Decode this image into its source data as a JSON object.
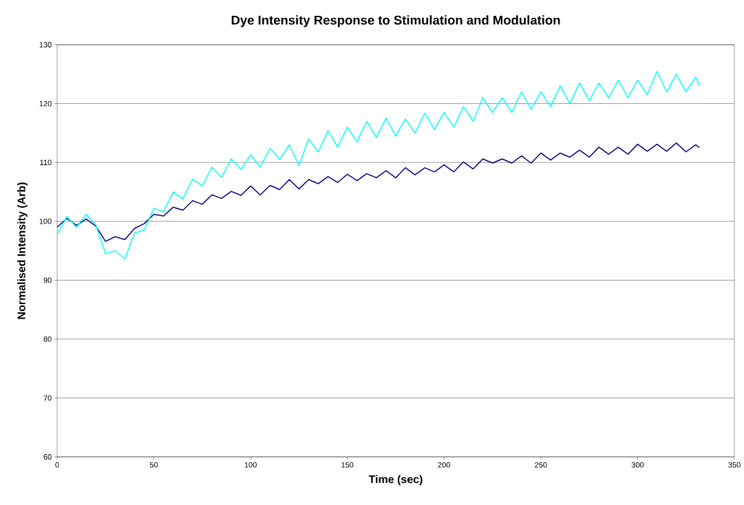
{
  "chart_data": {
    "type": "line",
    "title": "Dye Intensity Response to Stimulation and Modulation",
    "xlabel": "Time (sec)",
    "ylabel": "Normalised Intensity (Arb)",
    "x": [
      0,
      5,
      10,
      15,
      20,
      25,
      30,
      35,
      40,
      45,
      50,
      55,
      60,
      65,
      70,
      75,
      80,
      85,
      90,
      95,
      100,
      105,
      110,
      115,
      120,
      125,
      130,
      135,
      140,
      145,
      150,
      155,
      160,
      165,
      170,
      175,
      180,
      185,
      190,
      195,
      200,
      205,
      210,
      215,
      220,
      225,
      230,
      235,
      240,
      245,
      250,
      255,
      260,
      265,
      270,
      275,
      280,
      285,
      290,
      295,
      300,
      305,
      310,
      315,
      320,
      325,
      330,
      332
    ],
    "series": [
      {
        "color": "#000080",
        "values": [
          99.0,
          100.5,
          99.3,
          100.4,
          99.2,
          96.6,
          97.4,
          96.9,
          98.8,
          99.6,
          101.2,
          100.9,
          102.4,
          101.9,
          103.5,
          102.9,
          104.5,
          103.9,
          105.1,
          104.4,
          106.0,
          104.5,
          106.1,
          105.4,
          107.1,
          105.5,
          107.1,
          106.4,
          107.6,
          106.6,
          108.0,
          106.9,
          108.1,
          107.4,
          108.6,
          107.4,
          109.1,
          107.9,
          109.1,
          108.4,
          109.6,
          108.4,
          110.1,
          108.9,
          110.6,
          109.9,
          110.6,
          109.9,
          111.1,
          109.9,
          111.6,
          110.4,
          111.6,
          110.9,
          112.1,
          110.9,
          112.6,
          111.4,
          112.6,
          111.4,
          113.1,
          111.9,
          113.1,
          111.9,
          113.3,
          111.8,
          113.0,
          112.5
        ]
      },
      {
        "color": "#00ffff",
        "values": [
          97.8,
          100.8,
          99.0,
          101.2,
          99.4,
          94.5,
          95.0,
          93.6,
          98.0,
          98.5,
          102.2,
          101.6,
          105.0,
          103.8,
          107.2,
          106.0,
          109.2,
          107.5,
          110.6,
          108.8,
          111.3,
          109.2,
          112.4,
          110.5,
          113.0,
          109.5,
          114.0,
          111.8,
          115.4,
          112.6,
          116.0,
          113.5,
          117.0,
          114.2,
          117.5,
          114.5,
          117.4,
          115.0,
          118.4,
          115.6,
          118.5,
          116.0,
          119.5,
          117.0,
          121.0,
          118.5,
          121.0,
          118.5,
          122.0,
          119.0,
          122.0,
          119.5,
          123.0,
          120.0,
          123.5,
          120.5,
          123.5,
          121.0,
          124.0,
          121.0,
          124.0,
          121.5,
          125.5,
          122.0,
          125.0,
          122.0,
          124.5,
          123.0
        ]
      }
    ],
    "xlim": [
      0,
      350
    ],
    "ylim": [
      60,
      130
    ],
    "xticks": [
      0,
      50,
      100,
      150,
      200,
      250,
      300,
      350
    ],
    "yticks": [
      60,
      70,
      80,
      90,
      100,
      110,
      120,
      130
    ],
    "grid": "y",
    "marker": "none",
    "line_style": "solid"
  }
}
